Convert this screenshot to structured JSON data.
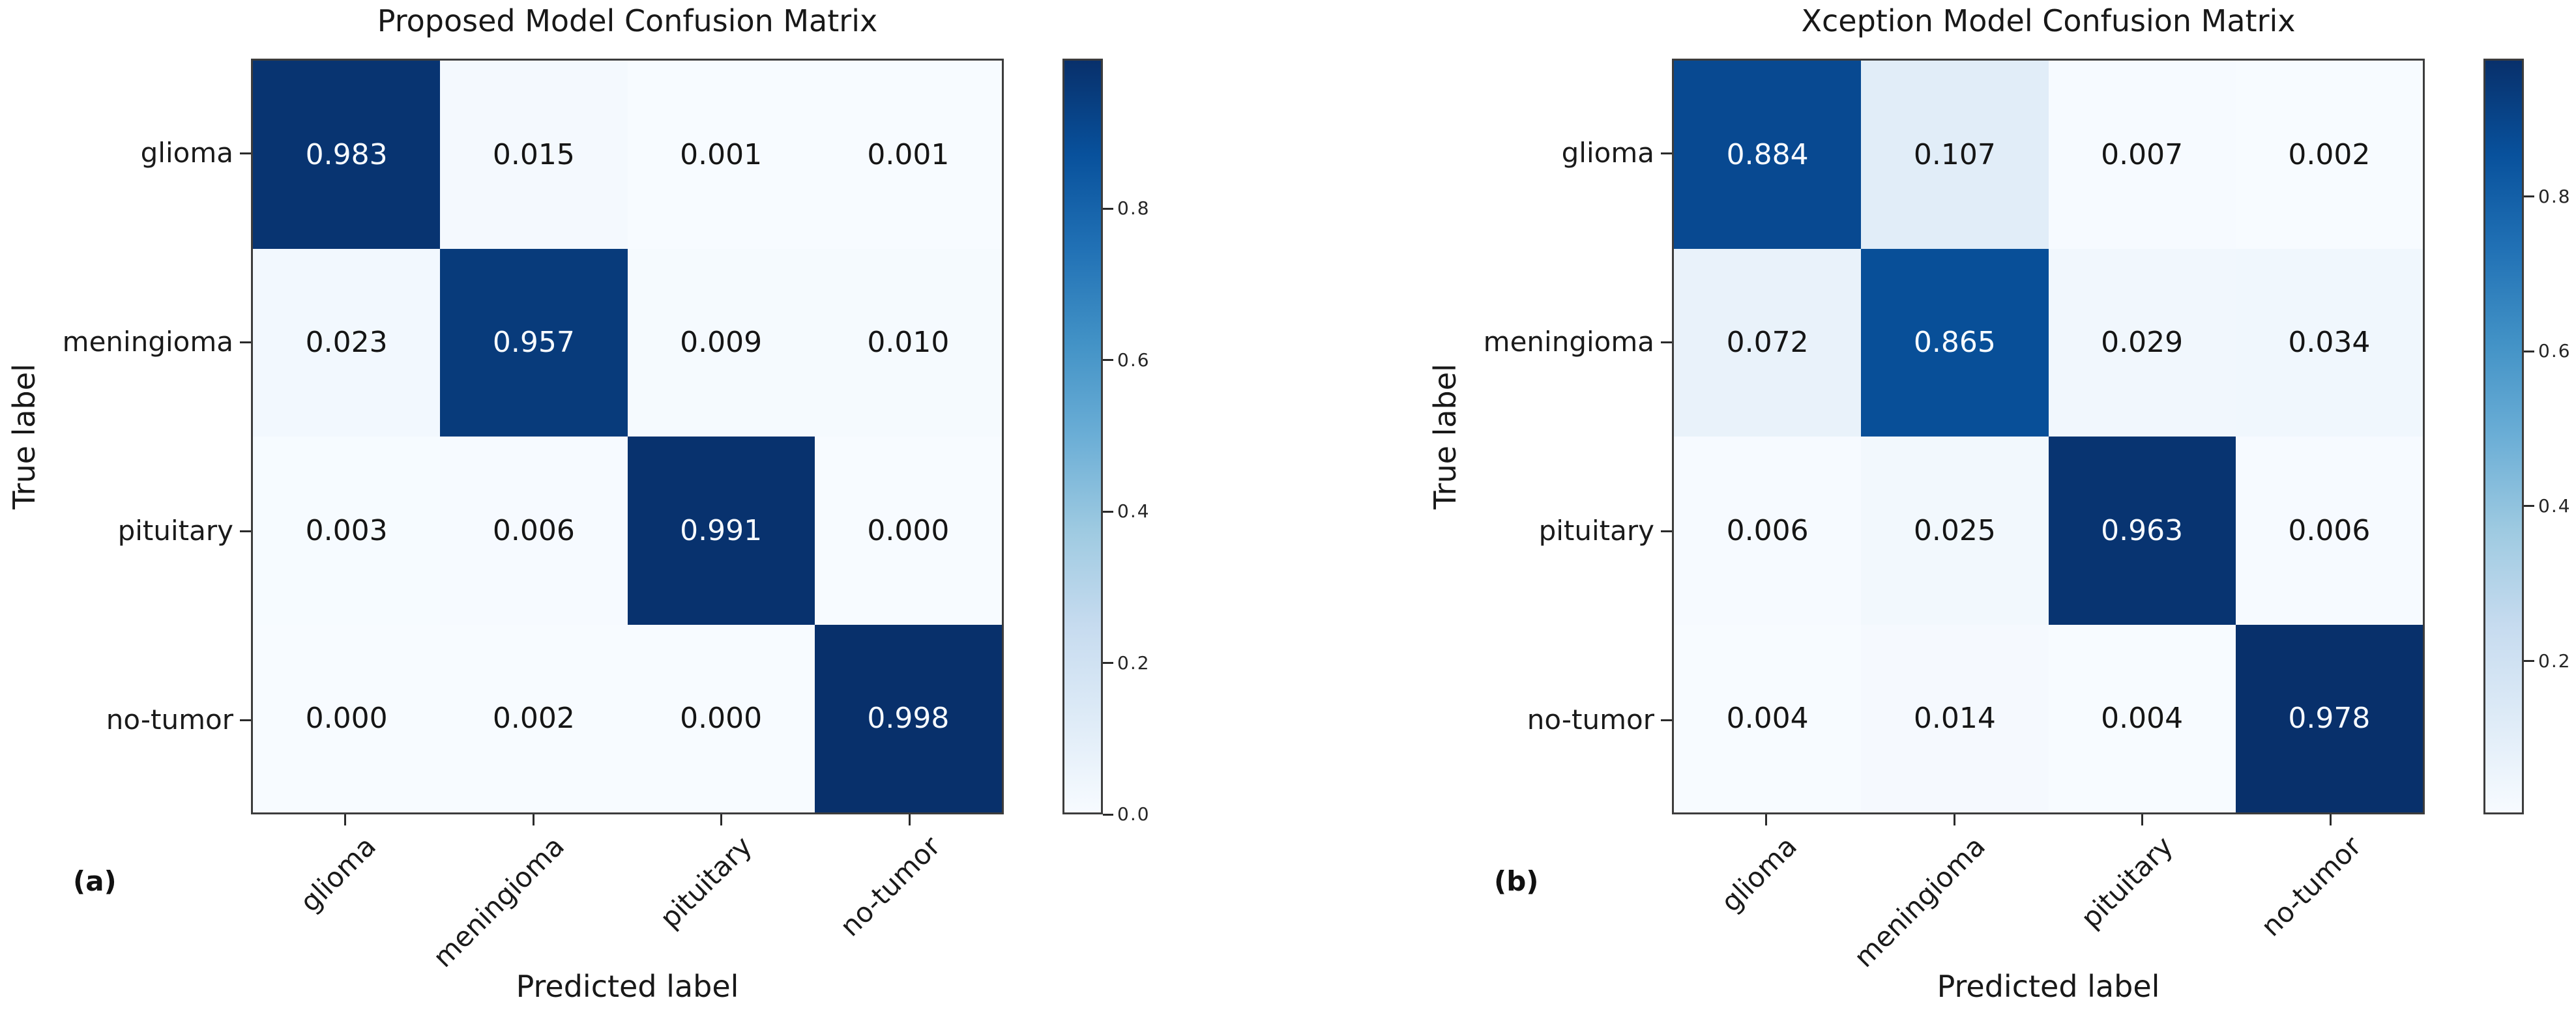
{
  "page": {
    "background": "#ffffff"
  },
  "colors": {
    "colormap_name": "Blues",
    "colormap_max": "#08306b",
    "colormap_min": "#f7fbff",
    "axis_text": "#1a1a1a",
    "cell_text_dark": "#151515",
    "cell_text_light": "#f7fbff",
    "spine": "#3c3c3c"
  },
  "chart_data": [
    {
      "type": "heatmap",
      "caption": "(a)",
      "title": "Proposed Model Confusion Matrix",
      "xlabel": "Predicted label",
      "ylabel": "True label",
      "x_categories": [
        "glioma",
        "meningioma",
        "pituitary",
        "no-tumor"
      ],
      "y_categories": [
        "glioma",
        "meningioma",
        "pituitary",
        "no-tumor"
      ],
      "values": [
        [
          0.983,
          0.015,
          0.001,
          0.001
        ],
        [
          0.023,
          0.957,
          0.009,
          0.01
        ],
        [
          0.003,
          0.006,
          0.991,
          0.0
        ],
        [
          0.0,
          0.002,
          0.0,
          0.998
        ]
      ],
      "value_decimals": 3,
      "colormap": "Blues",
      "color_range": [
        0.0,
        0.998
      ],
      "colorbar_tick_labels": [
        "0.8",
        "0.6",
        "0.4",
        "0.2",
        "0.0"
      ],
      "legend_position": "right-colorbar",
      "grid": false
    },
    {
      "type": "heatmap",
      "caption": "(b)",
      "title": "Xception Model Confusion Matrix",
      "xlabel": "Predicted label",
      "ylabel": "True label",
      "x_categories": [
        "glioma",
        "meningioma",
        "pituitary",
        "no-tumor"
      ],
      "y_categories": [
        "glioma",
        "meningioma",
        "pituitary",
        "no-tumor"
      ],
      "values": [
        [
          0.884,
          0.107,
          0.007,
          0.002
        ],
        [
          0.072,
          0.865,
          0.029,
          0.034
        ],
        [
          0.006,
          0.025,
          0.963,
          0.006
        ],
        [
          0.004,
          0.014,
          0.004,
          0.978
        ]
      ],
      "value_decimals": 3,
      "colormap": "Blues",
      "color_range": [
        0.002,
        0.978
      ],
      "colorbar_tick_labels": [
        "0.8",
        "0.6",
        "0.4",
        "0.2"
      ],
      "legend_position": "right-colorbar",
      "grid": false
    }
  ]
}
